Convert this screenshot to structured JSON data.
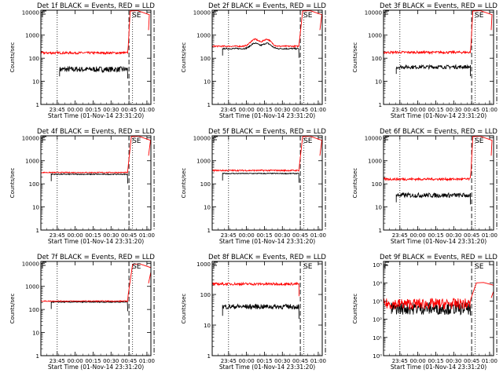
{
  "chart_data": [
    {
      "type": "line",
      "title": "Det 1f BLACK = Events, RED = LLD",
      "ylabel": "Counts/sec",
      "xlabel": "Start Time (01-Nov-14 23:31:20)",
      "x_ticks": [
        "23:45",
        "00:00",
        "00:15",
        "00:30",
        "00:45",
        "01:00"
      ],
      "y_ticks": [
        "1",
        "10",
        "100",
        "1000",
        "10000"
      ],
      "ylim": [
        1,
        12000
      ],
      "yscale": "log",
      "marker_label": "SE",
      "series": [
        {
          "name": "BLACK = Events",
          "color": "#000000",
          "start": "23:47",
          "end": "00:44",
          "level": 33,
          "noise": 0.12
        },
        {
          "name": "RED = LLD",
          "color": "#ff0000",
          "start": "23:31",
          "end": "00:44",
          "level": 170,
          "noise": 0.05,
          "rise_to": 11000,
          "rise_end": "00:46"
        }
      ]
    },
    {
      "type": "line",
      "title": "Det 2f BLACK = Events, RED = LLD",
      "ylabel": "Counts/sec",
      "xlabel": "Start Time (01-Nov-14 23:31:20)",
      "x_ticks": [
        "23:45",
        "00:00",
        "00:15",
        "00:30",
        "00:45",
        "01:00"
      ],
      "y_ticks": [
        "1",
        "10",
        "100",
        "1000",
        "10000"
      ],
      "ylim": [
        1,
        12000
      ],
      "yscale": "log",
      "marker_label": "SE",
      "series": [
        {
          "name": "BLACK = Events",
          "color": "#000000",
          "start": "23:40",
          "end": "00:44",
          "level": 260,
          "noise": 0.03,
          "hump": 1.7
        },
        {
          "name": "RED = LLD",
          "color": "#ff0000",
          "start": "23:31",
          "end": "00:44",
          "level": 330,
          "noise": 0.03,
          "hump": 2.0,
          "rise_to": 11000,
          "rise_end": "00:47"
        }
      ]
    },
    {
      "type": "line",
      "title": "Det 3f BLACK = Events, RED = LLD",
      "ylabel": "Counts/sec",
      "xlabel": "Start Time (01-Nov-14 23:31:20)",
      "x_ticks": [
        "23:45",
        "00:00",
        "00:15",
        "00:30",
        "00:45",
        "01:00"
      ],
      "y_ticks": [
        "1",
        "10",
        "100",
        "1000",
        "10000"
      ],
      "ylim": [
        1,
        12000
      ],
      "yscale": "log",
      "marker_label": "SE",
      "series": [
        {
          "name": "BLACK = Events",
          "color": "#000000",
          "start": "23:42",
          "end": "00:44",
          "level": 42,
          "noise": 0.08
        },
        {
          "name": "RED = LLD",
          "color": "#ff0000",
          "start": "23:31",
          "end": "00:44",
          "level": 180,
          "noise": 0.05,
          "rise_to": 11000,
          "rise_end": "00:46"
        }
      ]
    },
    {
      "type": "line",
      "title": "Det 4f BLACK = Events, RED = LLD",
      "ylabel": "Counts/sec",
      "xlabel": "Start Time (01-Nov-14 23:31:20)",
      "x_ticks": [
        "23:45",
        "00:00",
        "00:15",
        "00:30",
        "00:45",
        "01:00"
      ],
      "y_ticks": [
        "1",
        "10",
        "100",
        "1000",
        "10000"
      ],
      "ylim": [
        1,
        12000
      ],
      "yscale": "log",
      "marker_label": "SE",
      "series": [
        {
          "name": "BLACK = Events",
          "color": "#000000",
          "start": "23:40",
          "end": "00:44",
          "level": 260,
          "noise": 0.02
        },
        {
          "name": "RED = LLD",
          "color": "#ff0000",
          "start": "23:31",
          "end": "00:44",
          "level": 310,
          "noise": 0.02,
          "rise_to": 11000,
          "rise_end": "00:47"
        }
      ]
    },
    {
      "type": "line",
      "title": "Det 5f BLACK = Events, RED = LLD",
      "ylabel": "Counts/sec",
      "xlabel": "Start Time (01-Nov-14 23:31:20)",
      "x_ticks": [
        "23:45",
        "00:00",
        "00:15",
        "00:30",
        "00:45",
        "01:00"
      ],
      "y_ticks": [
        "1",
        "10",
        "100",
        "1000",
        "10000"
      ],
      "ylim": [
        1,
        12000
      ],
      "yscale": "log",
      "marker_label": "SE",
      "series": [
        {
          "name": "BLACK = Events",
          "color": "#000000",
          "start": "23:40",
          "end": "00:44",
          "level": 280,
          "noise": 0.02
        },
        {
          "name": "RED = LLD",
          "color": "#ff0000",
          "start": "23:31",
          "end": "00:44",
          "level": 380,
          "noise": 0.03,
          "rise_to": 11000,
          "rise_end": "00:47"
        }
      ]
    },
    {
      "type": "line",
      "title": "Det 6f BLACK = Events, RED = LLD",
      "ylabel": "Counts/sec",
      "xlabel": "Start Time (01-Nov-14 23:31:20)",
      "x_ticks": [
        "23:45",
        "00:00",
        "00:15",
        "00:30",
        "00:45",
        "01:00"
      ],
      "y_ticks": [
        "1",
        "10",
        "100",
        "1000",
        "10000"
      ],
      "ylim": [
        1,
        12000
      ],
      "yscale": "log",
      "marker_label": "SE",
      "series": [
        {
          "name": "BLACK = Events",
          "color": "#000000",
          "start": "23:42",
          "end": "00:44",
          "level": 32,
          "noise": 0.1
        },
        {
          "name": "RED = LLD",
          "color": "#ff0000",
          "start": "23:31",
          "end": "00:44",
          "level": 160,
          "noise": 0.05,
          "rise_to": 11000,
          "rise_end": "00:46"
        }
      ]
    },
    {
      "type": "line",
      "title": "Det 7f BLACK = Events, RED = LLD",
      "ylabel": "Counts/sec",
      "xlabel": "Start Time (01-Nov-14 23:31:20)",
      "x_ticks": [
        "23:45",
        "00:00",
        "00:15",
        "00:30",
        "00:45",
        "01:00"
      ],
      "y_ticks": [
        "1",
        "10",
        "100",
        "1000",
        "10000"
      ],
      "ylim": [
        1,
        12000
      ],
      "yscale": "log",
      "marker_label": "SE",
      "series": [
        {
          "name": "BLACK = Events",
          "color": "#000000",
          "start": "23:40",
          "end": "00:44",
          "level": 210,
          "noise": 0.02
        },
        {
          "name": "RED = LLD",
          "color": "#ff0000",
          "start": "23:31",
          "end": "00:44",
          "level": 230,
          "noise": 0.02,
          "rise_to": 9000,
          "rise_end": "00:48"
        }
      ]
    },
    {
      "type": "line",
      "title": "Det 8f BLACK = Events, RED = LLD",
      "ylabel": "Counts/sec",
      "xlabel": "Start Time (01-Nov-14 23:31:20)",
      "x_ticks": [
        "23:45",
        "00:00",
        "00:15",
        "00:30",
        "00:45",
        "01:00"
      ],
      "y_ticks": [
        "1",
        "10",
        "100",
        "1000"
      ],
      "ylim": [
        1,
        1200
      ],
      "yscale": "log",
      "marker_label": "SE",
      "series": [
        {
          "name": "BLACK = Events",
          "color": "#000000",
          "start": "23:40",
          "end": "00:44",
          "level": 40,
          "noise": 0.08
        },
        {
          "name": "RED = LLD",
          "color": "#ff0000",
          "start": "23:31",
          "end": "00:44",
          "level": 220,
          "noise": 0.04
        }
      ]
    },
    {
      "type": "line",
      "title": "Det 9f BLACK = Events, RED = LLD",
      "ylabel": "Counts/sec",
      "xlabel": "Start Time (01-Nov-14 23:31:20)",
      "x_ticks": [
        "23:45",
        "00:00",
        "00:15",
        "00:30",
        "00:45",
        "01:00"
      ],
      "y_ticks": [
        "10⁰",
        "10¹",
        "10²",
        "10³",
        "10⁴",
        "10⁵"
      ],
      "ylim": [
        1,
        150000
      ],
      "yscale": "log",
      "marker_label": "SE",
      "series": [
        {
          "name": "BLACK = Events",
          "color": "#000000",
          "start": "23:38",
          "end": "00:44",
          "level": 400,
          "noise": 0.35
        },
        {
          "name": "RED = LLD",
          "color": "#ff0000",
          "start": "23:31",
          "end": "00:44",
          "level": 700,
          "noise": 0.3,
          "rise_to": 10000,
          "rise_end": "00:49"
        }
      ]
    }
  ]
}
